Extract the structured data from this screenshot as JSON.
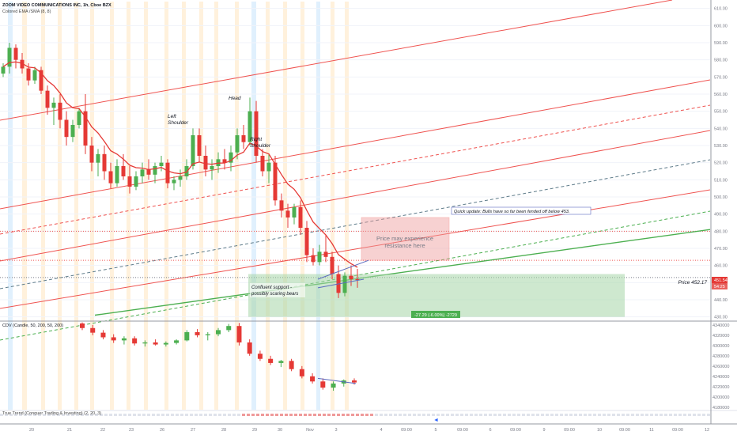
{
  "header": {
    "symbol": "ZOOM VIDEO COMMUNICATIONS INC, 1h, Cboe BZX",
    "indicator": "Colored EMA /SMA (8, 8)"
  },
  "annotations": {
    "head": "Head",
    "left_shoulder_1": "Left",
    "left_shoulder_2": "Shoulder",
    "right_shoulder_1": "Right",
    "right_shoulder_2": "Shoulder",
    "quick_update": "Quick update: Bulls have so far been fended off below 453.",
    "resistance_1": "Price may experience",
    "resistance_2": "resistance here",
    "support_1": "Confluent support -",
    "support_2": "possibly scaring bears",
    "measure": "-27.29 (-6.00%) -2729",
    "price_label": "Price 452.17",
    "price_tag": "451.54",
    "time_tag": "54:25"
  },
  "lower_panel": {
    "title": "CDV (Candle, 50, 200, 50, 200)",
    "sub_title": "True Trend (Conquer Trading & Investing) (2, 20, 3)"
  },
  "colors": {
    "up": "#4caf50",
    "down": "#e53935",
    "channel": "#ef5350",
    "support_line": "#4caf50",
    "ema": "#e53935",
    "zone_green": "#a5d6a7",
    "zone_red": "#ef9a9a"
  },
  "chart_data": [
    {
      "type": "candlestick",
      "title": "ZOOM VIDEO COMMUNICATIONS INC, 1h, Cboe BZX",
      "x_ticks": [
        "20",
        "21",
        "22",
        "23",
        "26",
        "27",
        "28",
        "29",
        "30",
        "Nov",
        "3",
        "4",
        "09:00",
        "5",
        "09:00",
        "6",
        "09:00",
        "9",
        "09:00",
        "10",
        "09:00",
        "11",
        "09:00",
        "12"
      ],
      "y_ticks": [
        430,
        440,
        450,
        460,
        470,
        480,
        490,
        500,
        510,
        520,
        530,
        540,
        550,
        560,
        570,
        580,
        590,
        600,
        610
      ],
      "ylim": [
        428,
        614
      ],
      "series": [
        {
          "values": [
            [
              572,
              578,
              570,
              576
            ],
            [
              576,
              590,
              572,
              587
            ],
            [
              587,
              589,
              575,
              580
            ],
            [
              580,
              584,
              572,
              575
            ],
            [
              575,
              578,
              565,
              568
            ],
            [
              568,
              576,
              566,
              574
            ],
            [
              574,
              576,
              560,
              562
            ],
            [
              562,
              565,
              548,
              552
            ],
            [
              552,
              558,
              542,
              555
            ],
            [
              555,
              560,
              540,
              545
            ],
            [
              545,
              550,
              530,
              535
            ],
            [
              535,
              545,
              532,
              542
            ],
            [
              542,
              552,
              540,
              550
            ],
            [
              550,
              560,
              525,
              530
            ],
            [
              530,
              535,
              515,
              520
            ],
            [
              520,
              528,
              512,
              525
            ],
            [
              525,
              530,
              510,
              515
            ],
            [
              515,
              520,
              505,
              508
            ],
            [
              508,
              522,
              506,
              518
            ],
            [
              518,
              525,
              510,
              512
            ],
            [
              512,
              518,
              502,
              506
            ],
            [
              506,
              515,
              504,
              512
            ],
            [
              512,
              520,
              508,
              516
            ],
            [
              516,
              522,
              510,
              513
            ],
            [
              513,
              520,
              508,
              518
            ],
            [
              518,
              524,
              515,
              520
            ],
            [
              520,
              522,
              505,
              508
            ],
            [
              508,
              512,
              504,
              510
            ],
            [
              510,
              516,
              506,
              512
            ],
            [
              512,
              522,
              510,
              518
            ],
            [
              518,
              540,
              516,
              536
            ],
            [
              536,
              540,
              520,
              524
            ],
            [
              524,
              530,
              512,
              516
            ],
            [
              516,
              522,
              510,
              518
            ],
            [
              518,
              526,
              514,
              522
            ],
            [
              522,
              528,
              516,
              520
            ],
            [
              520,
              530,
              515,
              526
            ],
            [
              526,
              540,
              522,
              536
            ],
            [
              536,
              542,
              528,
              532
            ],
            [
              532,
              558,
              530,
              550
            ],
            [
              550,
              556,
              520,
              524
            ],
            [
              524,
              528,
              512,
              515
            ],
            [
              515,
              525,
              508,
              520
            ],
            [
              520,
              524,
              495,
              498
            ],
            [
              498,
              502,
              488,
              492
            ],
            [
              492,
              496,
              482,
              488
            ],
            [
              488,
              496,
              484,
              494
            ],
            [
              494,
              498,
              478,
              482
            ],
            [
              482,
              486,
              462,
              466
            ],
            [
              466,
              470,
              460,
              462
            ],
            [
              462,
              472,
              460,
              468
            ],
            [
              468,
              478,
              462,
              465
            ],
            [
              465,
              468,
              452,
              455
            ],
            [
              455,
              460,
              441,
              444
            ],
            [
              444,
              456,
              442,
              454
            ],
            [
              454,
              460,
              448,
              452
            ],
            [
              452,
              458,
              447,
              451.5
            ]
          ]
        }
      ],
      "ema_label": "Colored EMA /SMA (8, 8)"
    },
    {
      "type": "bar",
      "title": "CDV (Candle, 50, 200, 50, 200)",
      "y_ticks": [
        4180000,
        4200000,
        4220000,
        4240000,
        4260000,
        4280000,
        4300000,
        4320000,
        4340000
      ],
      "ylim": [
        4175000,
        4346000
      ],
      "series": [
        {
          "values": [
            [
              4343000,
              4345000,
              4330000,
              4334000
            ],
            [
              4334000,
              4340000,
              4320000,
              4325000
            ],
            [
              4325000,
              4330000,
              4312000,
              4316000
            ],
            [
              4316000,
              4322000,
              4305000,
              4310000
            ],
            [
              4310000,
              4318000,
              4302000,
              4314000
            ],
            [
              4314000,
              4318000,
              4300000,
              4304000
            ],
            [
              4304000,
              4310000,
              4298000,
              4306000
            ],
            [
              4306000,
              4312000,
              4300000,
              4302000
            ],
            [
              4302000,
              4308000,
              4298000,
              4305000
            ],
            [
              4305000,
              4312000,
              4302000,
              4310000
            ],
            [
              4310000,
              4330000,
              4308000,
              4326000
            ],
            [
              4326000,
              4332000,
              4316000,
              4320000
            ],
            [
              4320000,
              4326000,
              4310000,
              4322000
            ],
            [
              4322000,
              4334000,
              4318000,
              4330000
            ],
            [
              4330000,
              4342000,
              4326000,
              4338000
            ],
            [
              4338000,
              4344000,
              4300000,
              4306000
            ],
            [
              4306000,
              4312000,
              4280000,
              4284000
            ],
            [
              4284000,
              4290000,
              4270000,
              4274000
            ],
            [
              4274000,
              4280000,
              4262000,
              4266000
            ],
            [
              4266000,
              4272000,
              4258000,
              4270000
            ],
            [
              4270000,
              4274000,
              4250000,
              4254000
            ],
            [
              4254000,
              4260000,
              4236000,
              4240000
            ],
            [
              4240000,
              4246000,
              4226000,
              4230000
            ],
            [
              4230000,
              4236000,
              4214000,
              4218000
            ],
            [
              4218000,
              4230000,
              4212000,
              4226000
            ],
            [
              4226000,
              4234000,
              4220000,
              4232000
            ],
            [
              4232000,
              4236000,
              4224000,
              4228000
            ]
          ]
        }
      ]
    }
  ]
}
